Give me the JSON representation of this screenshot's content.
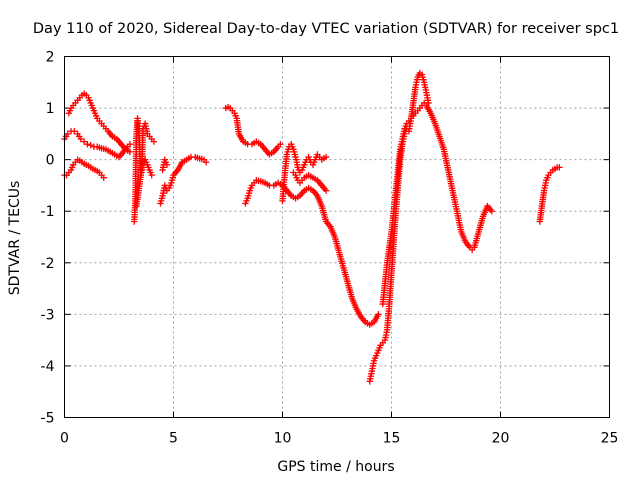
{
  "chart_data": {
    "type": "scatter",
    "title": "Day 110 of 2020, Sidereal Day-to-day VTEC variation (SDTVAR) for receiver spc1",
    "xlabel": "GPS time / hours",
    "ylabel": "SDTVAR / TECUs",
    "xlim": [
      0,
      25
    ],
    "ylim": [
      -5,
      2
    ],
    "x_ticks": [
      "0",
      "5",
      "10",
      "15",
      "20",
      "25"
    ],
    "y_ticks": [
      "-5",
      "-4",
      "-3",
      "-2",
      "-1",
      "0",
      "1",
      "2"
    ],
    "grid": true,
    "marker": "+",
    "color": "#ff0000",
    "series": [
      {
        "x": [
          0.0,
          0.15,
          0.3,
          0.45,
          0.6,
          0.75,
          0.9,
          1.05,
          1.2,
          1.35,
          1.5,
          1.7,
          1.9,
          2.1,
          2.3,
          2.5,
          2.7,
          2.9,
          3.0
        ],
        "y": [
          0.4,
          0.5,
          0.55,
          0.55,
          0.5,
          0.4,
          0.35,
          0.3,
          0.28,
          0.25,
          0.25,
          0.22,
          0.2,
          0.15,
          0.1,
          0.05,
          0.15,
          0.25,
          0.3
        ]
      },
      {
        "x": [
          0.0,
          0.1,
          0.2,
          0.3,
          0.4,
          0.5,
          0.6,
          0.7,
          0.8,
          0.9,
          1.0,
          1.1,
          1.2,
          1.3,
          1.4,
          1.5,
          1.6,
          1.7,
          1.8
        ],
        "y": [
          -0.3,
          -0.3,
          -0.25,
          -0.2,
          -0.1,
          -0.05,
          0.0,
          -0.02,
          -0.05,
          -0.08,
          -0.1,
          -0.12,
          -0.15,
          -0.18,
          -0.2,
          -0.22,
          -0.25,
          -0.3,
          -0.35
        ]
      },
      {
        "x": [
          0.2,
          0.3,
          0.4,
          0.5,
          0.6,
          0.7,
          0.8,
          0.9,
          1.0,
          1.1,
          1.2,
          1.3,
          1.4,
          1.5,
          1.6,
          1.7,
          1.8,
          1.9,
          2.0,
          2.2,
          2.4,
          2.6,
          2.8,
          3.0
        ],
        "y": [
          0.9,
          1.0,
          1.05,
          1.1,
          1.15,
          1.2,
          1.25,
          1.28,
          1.25,
          1.2,
          1.1,
          1.0,
          0.9,
          0.8,
          0.75,
          0.7,
          0.65,
          0.6,
          0.55,
          0.45,
          0.4,
          0.3,
          0.2,
          0.15
        ]
      },
      {
        "x": [
          3.2,
          3.25,
          3.3,
          3.35,
          3.4,
          3.45,
          3.5,
          3.55,
          3.6,
          3.7,
          3.8,
          3.9,
          4.0,
          4.1
        ],
        "y": [
          -1.2,
          -0.8,
          0.5,
          0.8,
          0.6,
          0.2,
          -0.3,
          -0.2,
          0.6,
          0.7,
          0.5,
          0.45,
          0.4,
          0.35
        ]
      },
      {
        "x": [
          3.3,
          3.4,
          3.5,
          3.6,
          3.7,
          3.8,
          3.9,
          4.0
        ],
        "y": [
          -0.9,
          -0.6,
          -0.3,
          -0.1,
          0.0,
          -0.1,
          -0.2,
          -0.3
        ]
      },
      {
        "x": [
          4.4,
          4.5,
          4.6,
          4.7,
          4.8,
          4.9,
          5.0,
          5.2,
          5.4,
          5.6,
          5.8,
          6.0,
          6.2,
          6.4,
          6.5
        ],
        "y": [
          -0.85,
          -0.7,
          -0.5,
          -0.6,
          -0.55,
          -0.45,
          -0.3,
          -0.2,
          -0.05,
          0.0,
          0.05,
          0.05,
          0.02,
          0.0,
          -0.05
        ]
      },
      {
        "x": [
          4.5,
          4.6,
          4.7
        ],
        "y": [
          -0.2,
          0.0,
          -0.1
        ]
      },
      {
        "x": [
          7.4,
          7.5,
          7.6,
          7.7,
          7.8,
          7.9,
          8.0,
          8.2,
          8.4,
          8.6,
          8.8,
          9.0,
          9.2,
          9.4,
          9.6,
          9.8,
          9.9
        ],
        "y": [
          1.0,
          1.02,
          1.0,
          0.95,
          0.9,
          0.8,
          0.5,
          0.35,
          0.3,
          0.3,
          0.35,
          0.3,
          0.2,
          0.1,
          0.15,
          0.25,
          0.3
        ]
      },
      {
        "x": [
          8.3,
          8.4,
          8.5,
          8.6,
          8.7,
          8.8,
          9.0,
          9.2,
          9.4,
          9.6,
          9.8,
          10.0,
          10.2,
          10.4,
          10.6,
          10.8,
          11.0,
          11.2,
          11.4,
          11.6,
          11.8,
          12.0,
          12.2,
          12.4,
          12.6,
          12.8,
          13.0,
          13.2,
          13.4,
          13.6,
          13.8,
          14.0,
          14.2,
          14.4
        ],
        "y": [
          -0.85,
          -0.75,
          -0.6,
          -0.5,
          -0.45,
          -0.4,
          -0.42,
          -0.45,
          -0.5,
          -0.5,
          -0.45,
          -0.5,
          -0.6,
          -0.7,
          -0.75,
          -0.7,
          -0.6,
          -0.55,
          -0.6,
          -0.7,
          -0.9,
          -1.2,
          -1.3,
          -1.5,
          -1.8,
          -2.1,
          -2.4,
          -2.7,
          -2.9,
          -3.05,
          -3.15,
          -3.2,
          -3.15,
          -3.0
        ]
      },
      {
        "x": [
          10.0,
          10.1,
          10.2,
          10.3,
          10.4,
          10.5,
          10.6,
          10.7,
          10.8,
          10.9,
          11.0,
          11.1,
          11.2,
          11.3,
          11.4,
          11.5,
          11.6,
          11.7,
          11.8,
          12.0
        ],
        "y": [
          -0.8,
          -0.3,
          0.1,
          0.25,
          0.3,
          0.2,
          0.05,
          -0.15,
          -0.25,
          -0.2,
          -0.1,
          0.0,
          0.05,
          -0.05,
          -0.1,
          0.0,
          0.1,
          0.05,
          0.0,
          0.05
        ]
      },
      {
        "x": [
          10.5,
          10.6,
          10.7,
          10.8,
          10.9,
          11.0,
          11.2,
          11.4,
          11.6,
          11.8,
          12.0
        ],
        "y": [
          -0.25,
          -0.3,
          -0.4,
          -0.45,
          -0.4,
          -0.35,
          -0.3,
          -0.35,
          -0.4,
          -0.5,
          -0.6
        ]
      },
      {
        "x": [
          14.0,
          14.1,
          14.2,
          14.3,
          14.4,
          14.5,
          14.6,
          14.7,
          14.8,
          14.9,
          15.0,
          15.1,
          15.2,
          15.3,
          15.4,
          15.5,
          15.6,
          15.7,
          15.8,
          15.9,
          16.0,
          16.1,
          16.2,
          16.3,
          16.4,
          16.5,
          16.6,
          16.7
        ],
        "y": [
          -4.3,
          -4.1,
          -3.9,
          -3.8,
          -3.7,
          -3.6,
          -3.55,
          -3.5,
          -3.3,
          -2.8,
          -2.2,
          -1.6,
          -1.0,
          -0.5,
          0.0,
          0.3,
          0.5,
          0.6,
          0.55,
          0.8,
          1.1,
          1.4,
          1.6,
          1.68,
          1.65,
          1.5,
          1.3,
          1.1
        ]
      },
      {
        "x": [
          14.6,
          14.7,
          14.8,
          14.9,
          15.0,
          15.1,
          15.2,
          15.3,
          15.4,
          15.5,
          15.6,
          15.7,
          15.8,
          15.9,
          16.0,
          16.1,
          16.2,
          16.3,
          16.4,
          16.5,
          16.6,
          16.8,
          17.0,
          17.2,
          17.4,
          17.6,
          17.8,
          18.0,
          18.2,
          18.4,
          18.6,
          18.7,
          18.8,
          19.0,
          19.2,
          19.4,
          19.6
        ],
        "y": [
          -2.8,
          -2.4,
          -2.0,
          -1.7,
          -1.4,
          -1.0,
          -0.6,
          -0.2,
          0.2,
          0.4,
          0.6,
          0.7,
          0.75,
          0.8,
          0.85,
          0.9,
          0.95,
          1.0,
          1.05,
          1.1,
          1.05,
          0.9,
          0.7,
          0.45,
          0.2,
          -0.2,
          -0.6,
          -1.0,
          -1.4,
          -1.6,
          -1.7,
          -1.75,
          -1.7,
          -1.4,
          -1.1,
          -0.9,
          -1.0
        ]
      },
      {
        "x": [
          21.8,
          21.9,
          22.0,
          22.1,
          22.2,
          22.3,
          22.4,
          22.5,
          22.6,
          22.7
        ],
        "y": [
          -1.2,
          -0.9,
          -0.6,
          -0.4,
          -0.3,
          -0.25,
          -0.2,
          -0.18,
          -0.15,
          -0.15
        ]
      }
    ]
  }
}
